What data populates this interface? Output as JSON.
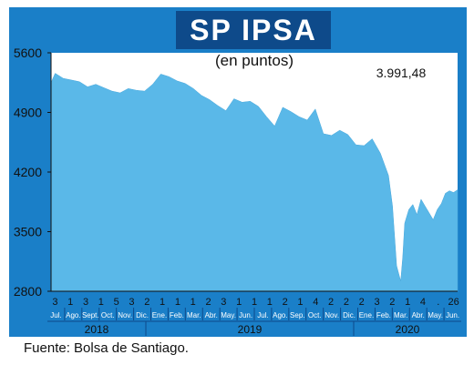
{
  "title": "SP IPSA",
  "source": "Fuente: Bolsa de Santiago.",
  "colors": {
    "frame": "#1a7fc8",
    "title_bar": "#0e4a8a",
    "plot_bg": "#ffffff",
    "area": "#5ab8e8",
    "axis_bg": "#1a7fc8"
  },
  "chart_data": {
    "type": "area",
    "subtitle": "(en puntos)",
    "annotation": "3.991,48",
    "ylim": [
      2800,
      5600
    ],
    "yticks": [
      "5600",
      "4900",
      "4200",
      "3500",
      "2800"
    ],
    "ytick_values": [
      5600,
      4900,
      4200,
      3500,
      2800
    ],
    "grid": false,
    "x_days": [
      "3",
      "1",
      "3",
      "1",
      "5",
      "3",
      "2",
      "1",
      "1",
      "1",
      "2",
      "3",
      "1",
      "1",
      "1",
      "2",
      "1",
      "4",
      "2",
      "2",
      "2",
      "3",
      "2",
      "1",
      "4",
      ".",
      "26"
    ],
    "x_months": [
      "Jul.",
      "Ago.",
      "Sept.",
      "Oct.",
      "Nov.",
      "Dic.",
      "Ene.",
      "Feb.",
      "Mar.",
      "Abr.",
      "May.",
      "Jun.",
      "Jul.",
      "Ago.",
      "Sep.",
      "Oct.",
      "Nov.",
      "Dic.",
      "Ene.",
      "Feb.",
      "Mar.",
      "Abr.",
      "May.",
      "Jun."
    ],
    "years": [
      "2018",
      "2019",
      "2020"
    ],
    "series": [
      {
        "x": [
          0,
          0.01,
          0.03,
          0.05,
          0.07,
          0.09,
          0.11,
          0.13,
          0.15,
          0.17,
          0.19,
          0.21,
          0.23,
          0.25,
          0.27,
          0.29,
          0.31,
          0.33,
          0.35,
          0.37,
          0.39,
          0.41,
          0.43,
          0.45,
          0.47,
          0.49,
          0.51,
          0.53,
          0.55,
          0.57,
          0.59,
          0.61,
          0.63,
          0.65,
          0.67,
          0.69,
          0.71,
          0.73,
          0.75,
          0.77,
          0.79,
          0.81,
          0.83,
          0.84,
          0.85,
          0.86,
          0.865,
          0.87,
          0.88,
          0.89,
          0.9,
          0.91,
          0.92,
          0.93,
          0.94,
          0.95,
          0.96,
          0.97,
          0.98,
          0.99,
          1.0
        ],
        "values": [
          5250,
          5360,
          5300,
          5280,
          5260,
          5200,
          5230,
          5190,
          5150,
          5130,
          5180,
          5160,
          5150,
          5230,
          5350,
          5320,
          5270,
          5240,
          5180,
          5100,
          5050,
          4980,
          4920,
          5060,
          5020,
          5030,
          4970,
          4850,
          4740,
          4960,
          4910,
          4850,
          4810,
          4940,
          4650,
          4630,
          4690,
          4640,
          4520,
          4510,
          4590,
          4420,
          4160,
          3800,
          3100,
          2920,
          3200,
          3600,
          3760,
          3820,
          3700,
          3880,
          3800,
          3720,
          3640,
          3760,
          3830,
          3950,
          3980,
          3960,
          3991.48
        ]
      }
    ]
  }
}
